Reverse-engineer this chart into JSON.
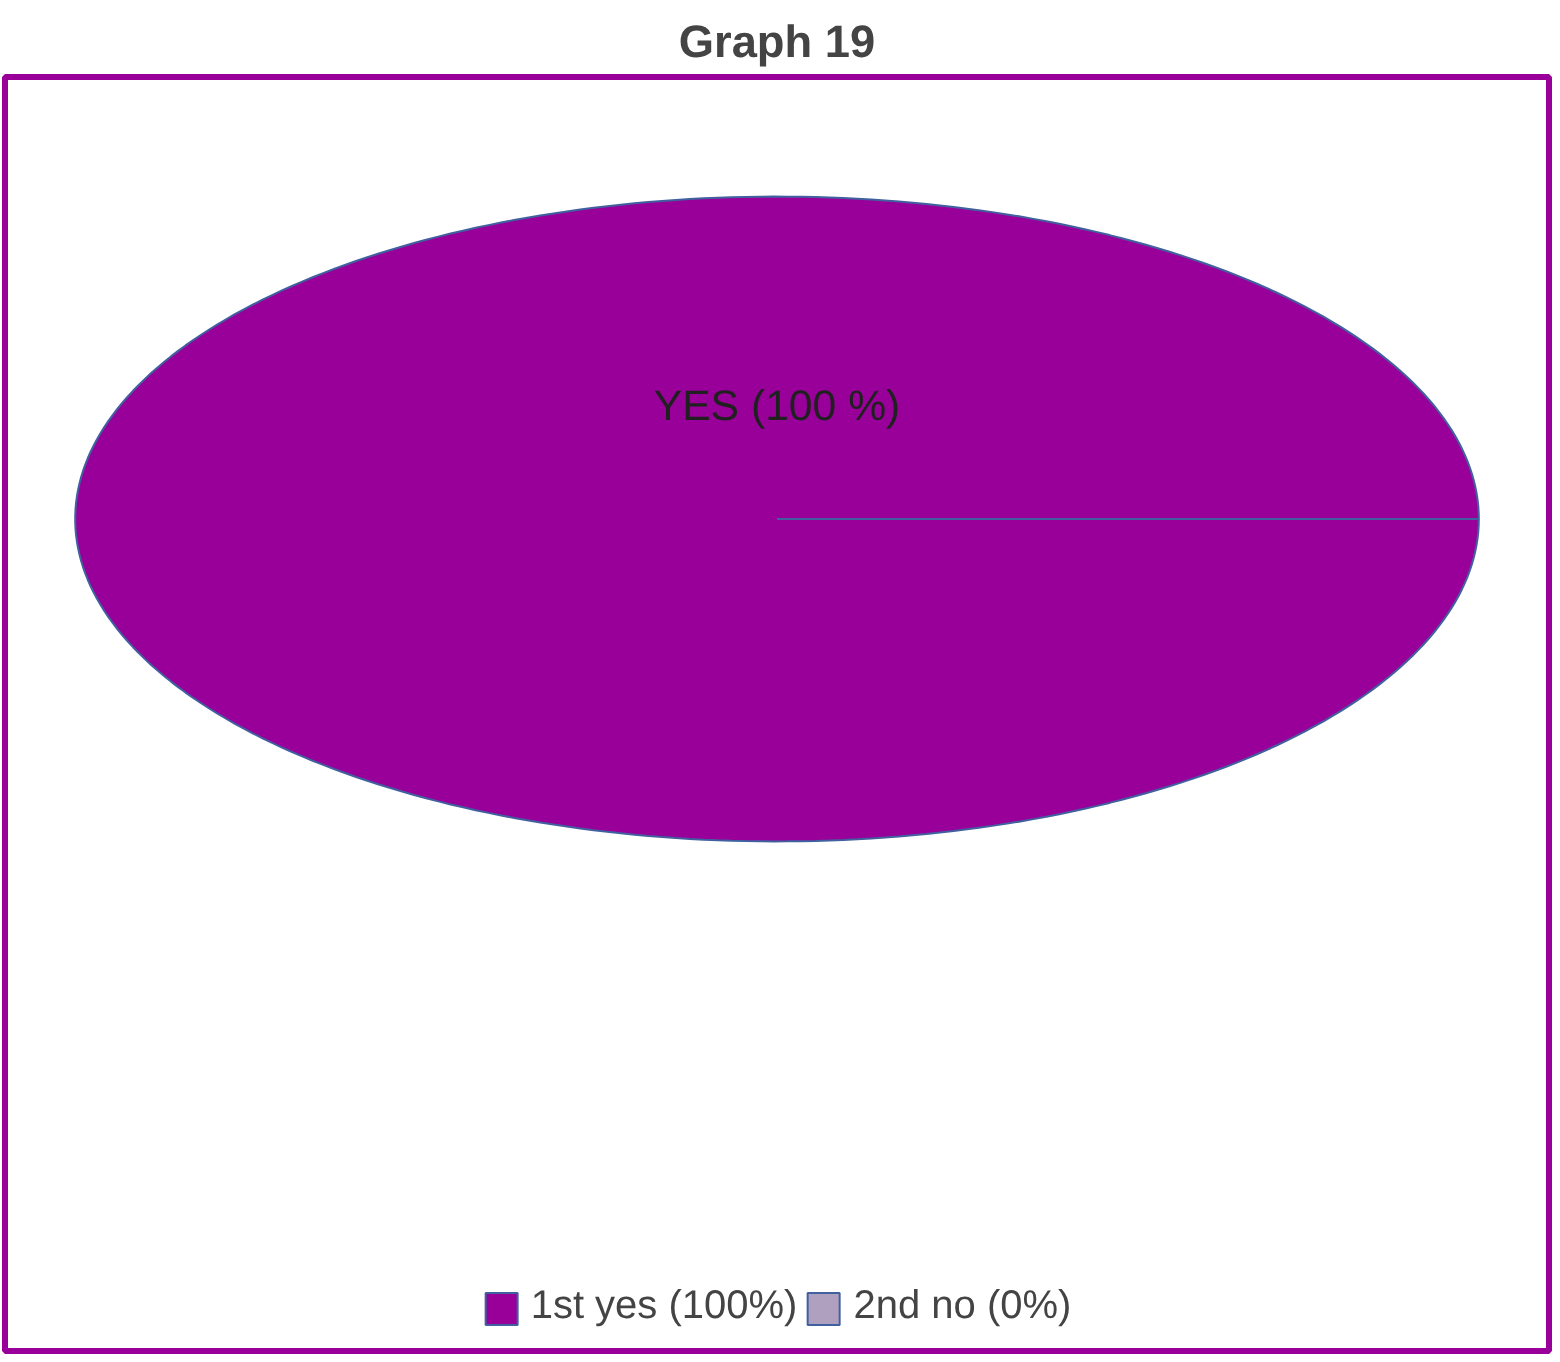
{
  "chart_data": {
    "type": "pie",
    "title": "Graph 19",
    "categories": [
      "1st yes (100%)",
      "2nd no (0%)"
    ],
    "values": [
      100,
      0
    ],
    "colors": [
      "#990099",
      "#b0a0c0"
    ],
    "value_labels": [
      "YES (100 %)",
      null
    ],
    "legend": "bottom"
  }
}
